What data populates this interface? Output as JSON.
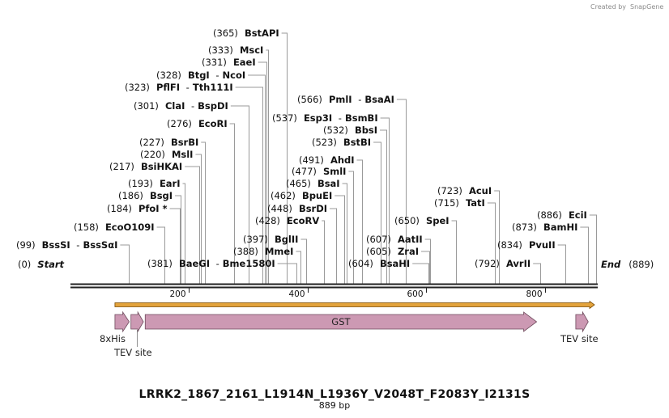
{
  "credit": {
    "text": "Created by",
    "brand": "SnapGene"
  },
  "sequence": {
    "name": "LRRK2_1867_2161_L1914N_L1936Y_V2048T_F2083Y_I2131S",
    "length_label": "889 bp",
    "length": 889
  },
  "axis": {
    "ticks": [
      200,
      400,
      600,
      800
    ]
  },
  "sites": [
    {
      "pos": "(0)",
      "names": [
        "Start"
      ],
      "bp": 0,
      "kind": "end"
    },
    {
      "pos": "(99)",
      "names": [
        "BssSI",
        "BssSαI"
      ],
      "bp": 99
    },
    {
      "pos": "(158)",
      "names": [
        "EcoO109I"
      ],
      "bp": 158
    },
    {
      "pos": "(184)",
      "names": [
        "PfoI *"
      ],
      "bp": 184
    },
    {
      "pos": "(186)",
      "names": [
        "BsgI"
      ],
      "bp": 186
    },
    {
      "pos": "(193)",
      "names": [
        "EarI"
      ],
      "bp": 193
    },
    {
      "pos": "(217)",
      "names": [
        "BsiHKAI"
      ],
      "bp": 217
    },
    {
      "pos": "(220)",
      "names": [
        "MslI"
      ],
      "bp": 220
    },
    {
      "pos": "(227)",
      "names": [
        "BsrBI"
      ],
      "bp": 227
    },
    {
      "pos": "(276)",
      "names": [
        "EcoRI"
      ],
      "bp": 276
    },
    {
      "pos": "(301)",
      "names": [
        "ClaI",
        "BspDI"
      ],
      "bp": 301
    },
    {
      "pos": "(323)",
      "names": [
        "PflFI",
        "Tth111I"
      ],
      "bp": 323
    },
    {
      "pos": "(328)",
      "names": [
        "BtgI",
        "NcoI"
      ],
      "bp": 328
    },
    {
      "pos": "(331)",
      "names": [
        "EaeI"
      ],
      "bp": 331
    },
    {
      "pos": "(333)",
      "names": [
        "MscI"
      ],
      "bp": 333
    },
    {
      "pos": "(365)",
      "names": [
        "BstAPI"
      ],
      "bp": 365
    },
    {
      "pos": "(381)",
      "names": [
        "BaeGI",
        "Bme1580I"
      ],
      "bp": 381
    },
    {
      "pos": "(388)",
      "names": [
        "MmeI"
      ],
      "bp": 388
    },
    {
      "pos": "(397)",
      "names": [
        "BglII"
      ],
      "bp": 397
    },
    {
      "pos": "(428)",
      "names": [
        "EcoRV"
      ],
      "bp": 428
    },
    {
      "pos": "(448)",
      "names": [
        "BsrDI"
      ],
      "bp": 448
    },
    {
      "pos": "(462)",
      "names": [
        "BpuEI"
      ],
      "bp": 462
    },
    {
      "pos": "(465)",
      "names": [
        "BsaI"
      ],
      "bp": 465
    },
    {
      "pos": "(477)",
      "names": [
        "SmlI"
      ],
      "bp": 477
    },
    {
      "pos": "(491)",
      "names": [
        "AhdI"
      ],
      "bp": 491
    },
    {
      "pos": "(523)",
      "names": [
        "BstBI"
      ],
      "bp": 523
    },
    {
      "pos": "(532)",
      "names": [
        "BbsI"
      ],
      "bp": 532
    },
    {
      "pos": "(537)",
      "names": [
        "Esp3I",
        "BsmBI"
      ],
      "bp": 537
    },
    {
      "pos": "(566)",
      "names": [
        "PmlI",
        "BsaAI"
      ],
      "bp": 566
    },
    {
      "pos": "(604)",
      "names": [
        "BsaHI"
      ],
      "bp": 604
    },
    {
      "pos": "(605)",
      "names": [
        "ZraI"
      ],
      "bp": 605
    },
    {
      "pos": "(607)",
      "names": [
        "AatII"
      ],
      "bp": 607
    },
    {
      "pos": "(650)",
      "names": [
        "SpeI"
      ],
      "bp": 650
    },
    {
      "pos": "(715)",
      "names": [
        "TatI"
      ],
      "bp": 715
    },
    {
      "pos": "(723)",
      "names": [
        "AcuI"
      ],
      "bp": 723
    },
    {
      "pos": "(792)",
      "names": [
        "AvrII"
      ],
      "bp": 792
    },
    {
      "pos": "(834)",
      "names": [
        "PvuII"
      ],
      "bp": 834
    },
    {
      "pos": "(873)",
      "names": [
        "BamHI"
      ],
      "bp": 873
    },
    {
      "pos": "(886)",
      "names": [
        "EciI"
      ],
      "bp": 886
    },
    {
      "pos": "(889)",
      "names": [
        "End"
      ],
      "bp": 889,
      "kind": "end"
    }
  ],
  "features": [
    {
      "label": "8xHis",
      "start_bp": 75,
      "end_bp": 99
    },
    {
      "label": "TEV site",
      "start_bp": 102,
      "end_bp": 123
    },
    {
      "label": "GST",
      "start_bp": 126,
      "end_bp": 786
    },
    {
      "label": "TEV site",
      "start_bp": 852,
      "end_bp": 873
    }
  ],
  "orf": {
    "start_bp": 75,
    "end_bp": 889
  },
  "colors": {
    "feature": "#cc99b3",
    "feature_stroke": "#6e4a5c",
    "orf": "#e3a33c",
    "orf_stroke": "#7a4a00",
    "backbone": "#222222"
  }
}
